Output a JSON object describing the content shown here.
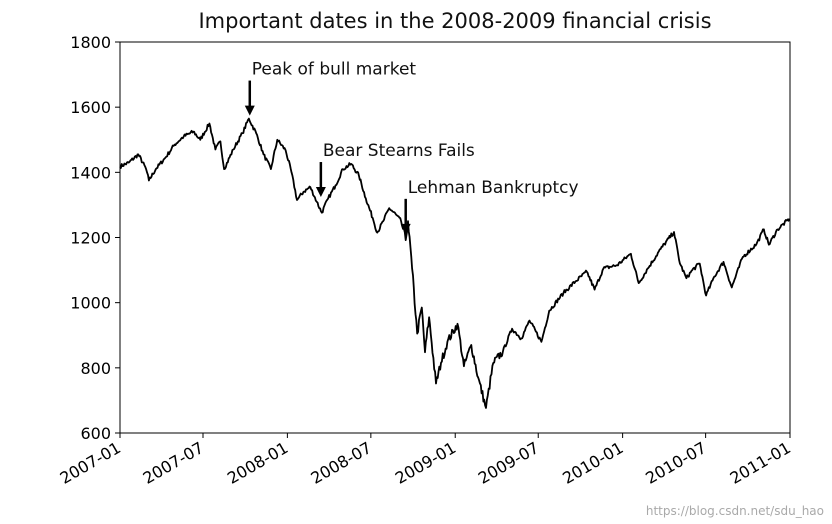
{
  "chart_data": {
    "type": "line",
    "title": "Important dates in the 2008-2009 financial crisis",
    "xlabel": "",
    "ylabel": "",
    "xlim": [
      "2007-01",
      "2011-01"
    ],
    "ylim": [
      600,
      1800
    ],
    "yticks": [
      600,
      800,
      1000,
      1200,
      1400,
      1600,
      1800
    ],
    "xticks": [
      "2007-01",
      "2007-07",
      "2008-01",
      "2008-07",
      "2009-01",
      "2009-07",
      "2010-01",
      "2010-07",
      "2011-01"
    ],
    "grid": false,
    "line_color": "#000000",
    "series": [
      {
        "points": [
          [
            "2007-01-01",
            1418
          ],
          [
            "2007-01-20",
            1430
          ],
          [
            "2007-02-10",
            1455
          ],
          [
            "2007-02-27",
            1410
          ],
          [
            "2007-03-05",
            1375
          ],
          [
            "2007-03-20",
            1410
          ],
          [
            "2007-04-10",
            1445
          ],
          [
            "2007-04-30",
            1485
          ],
          [
            "2007-05-20",
            1510
          ],
          [
            "2007-06-10",
            1525
          ],
          [
            "2007-06-25",
            1500
          ],
          [
            "2007-07-15",
            1550
          ],
          [
            "2007-07-28",
            1470
          ],
          [
            "2007-08-08",
            1495
          ],
          [
            "2007-08-16",
            1410
          ],
          [
            "2007-09-05",
            1470
          ],
          [
            "2007-09-25",
            1520
          ],
          [
            "2007-10-09",
            1565
          ],
          [
            "2007-10-25",
            1520
          ],
          [
            "2007-11-10",
            1455
          ],
          [
            "2007-11-26",
            1410
          ],
          [
            "2007-12-10",
            1500
          ],
          [
            "2007-12-28",
            1468
          ],
          [
            "2008-01-10",
            1400
          ],
          [
            "2008-01-22",
            1315
          ],
          [
            "2008-02-05",
            1340
          ],
          [
            "2008-02-20",
            1355
          ],
          [
            "2008-03-05",
            1310
          ],
          [
            "2008-03-16",
            1276
          ],
          [
            "2008-03-30",
            1320
          ],
          [
            "2008-04-15",
            1360
          ],
          [
            "2008-05-01",
            1410
          ],
          [
            "2008-05-19",
            1426
          ],
          [
            "2008-06-05",
            1390
          ],
          [
            "2008-06-20",
            1320
          ],
          [
            "2008-07-05",
            1260
          ],
          [
            "2008-07-15",
            1215
          ],
          [
            "2008-07-28",
            1250
          ],
          [
            "2008-08-10",
            1290
          ],
          [
            "2008-08-25",
            1270
          ],
          [
            "2008-09-05",
            1250
          ],
          [
            "2008-09-15",
            1192
          ],
          [
            "2008-09-20",
            1250
          ],
          [
            "2008-09-29",
            1105
          ],
          [
            "2008-10-10",
            905
          ],
          [
            "2008-10-20",
            985
          ],
          [
            "2008-10-27",
            848
          ],
          [
            "2008-11-05",
            955
          ],
          [
            "2008-11-20",
            752
          ],
          [
            "2008-12-01",
            815
          ],
          [
            "2008-12-15",
            880
          ],
          [
            "2009-01-06",
            935
          ],
          [
            "2009-01-20",
            805
          ],
          [
            "2009-02-05",
            870
          ],
          [
            "2009-02-20",
            770
          ],
          [
            "2009-03-09",
            677
          ],
          [
            "2009-03-25",
            815
          ],
          [
            "2009-04-15",
            850
          ],
          [
            "2009-05-05",
            920
          ],
          [
            "2009-05-25",
            890
          ],
          [
            "2009-06-12",
            945
          ],
          [
            "2009-07-08",
            880
          ],
          [
            "2009-07-25",
            975
          ],
          [
            "2009-08-25",
            1030
          ],
          [
            "2009-09-20",
            1065
          ],
          [
            "2009-10-15",
            1095
          ],
          [
            "2009-11-01",
            1040
          ],
          [
            "2009-11-20",
            1105
          ],
          [
            "2009-12-20",
            1115
          ],
          [
            "2010-01-19",
            1150
          ],
          [
            "2010-02-05",
            1060
          ],
          [
            "2010-02-25",
            1105
          ],
          [
            "2010-03-25",
            1165
          ],
          [
            "2010-04-23",
            1217
          ],
          [
            "2010-05-06",
            1120
          ],
          [
            "2010-05-20",
            1075
          ],
          [
            "2010-06-02",
            1100
          ],
          [
            "2010-06-18",
            1120
          ],
          [
            "2010-07-02",
            1022
          ],
          [
            "2010-07-20",
            1080
          ],
          [
            "2010-08-09",
            1125
          ],
          [
            "2010-08-27",
            1047
          ],
          [
            "2010-09-20",
            1140
          ],
          [
            "2010-10-20",
            1180
          ],
          [
            "2010-11-05",
            1225
          ],
          [
            "2010-11-16",
            1178
          ],
          [
            "2010-12-05",
            1225
          ],
          [
            "2010-12-31",
            1258
          ]
        ]
      }
    ],
    "annotations": [
      {
        "text": "Peak of bull market",
        "date": "2007-10-11",
        "value": 1565
      },
      {
        "text": "Bear Stearns Fails",
        "date": "2008-03-14",
        "value": 1315
      },
      {
        "text": "Lehman Bankruptcy",
        "date": "2008-09-15",
        "value": 1202
      }
    ]
  },
  "watermark": "https://blog.csdn.net/sdu_hao"
}
